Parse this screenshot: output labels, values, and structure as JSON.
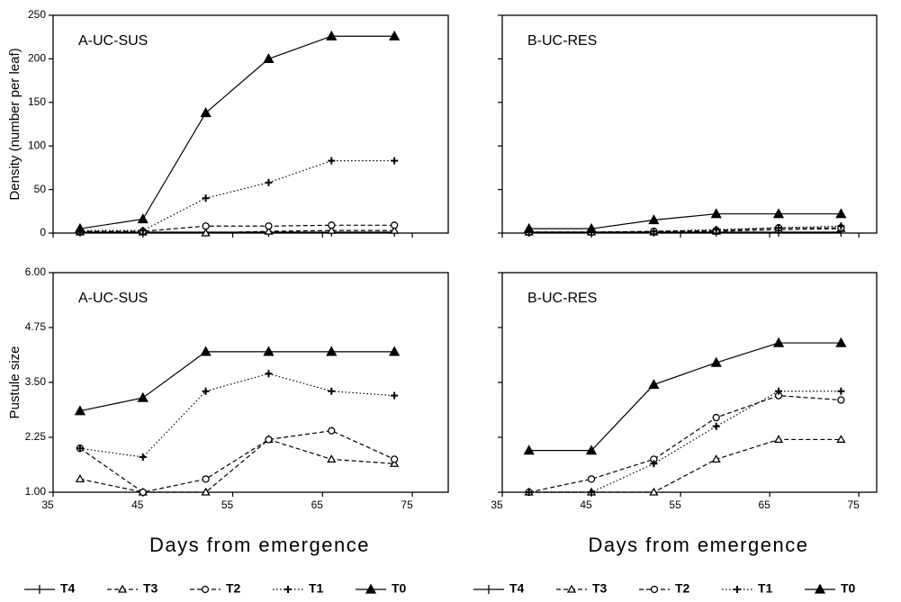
{
  "chart_data": [
    {
      "type": "line",
      "label": "A-UC-SUS",
      "y_label": "Density (number per leaf)",
      "x": [
        38,
        45,
        52,
        59,
        66,
        73
      ],
      "xlim": [
        35,
        79
      ],
      "xticks": [
        35,
        45,
        55,
        65,
        75
      ],
      "xtick_labels": false,
      "ylim": [
        0,
        250
      ],
      "yticks": [
        0,
        50,
        100,
        150,
        200,
        250
      ],
      "ytick_labels": true,
      "legend": false,
      "series": [
        {
          "name": "T4",
          "color": "#000",
          "dash": "solid",
          "marker": "bar",
          "values": [
            1,
            1,
            1,
            1,
            1,
            1
          ]
        },
        {
          "name": "T3",
          "color": "#000",
          "dash": "dashed",
          "marker": "open-triangle",
          "values": [
            1,
            1,
            0,
            2,
            3,
            3
          ]
        },
        {
          "name": "T2",
          "color": "#000",
          "dash": "dashed",
          "marker": "open-circle",
          "values": [
            2,
            2,
            8,
            8,
            9,
            9
          ]
        },
        {
          "name": "T1",
          "color": "#000",
          "dash": "dotted",
          "marker": "plus",
          "values": [
            3,
            3,
            40,
            58,
            83,
            83
          ]
        },
        {
          "name": "T0",
          "color": "#000",
          "dash": "solid",
          "marker": "filled-triangle",
          "values": [
            5,
            16,
            138,
            200,
            226,
            226
          ]
        }
      ]
    },
    {
      "type": "line",
      "label": "B-UC-RES",
      "x": [
        38,
        45,
        52,
        59,
        66,
        73
      ],
      "xlim": [
        35,
        77
      ],
      "xticks": [
        35,
        45,
        55,
        65,
        75
      ],
      "xtick_labels": false,
      "ylim": [
        0,
        250
      ],
      "yticks": [
        0,
        50,
        100,
        150,
        200,
        250
      ],
      "ytick_labels": false,
      "legend": false,
      "series": [
        {
          "name": "T4",
          "color": "#000",
          "dash": "solid",
          "marker": "bar",
          "values": [
            1,
            1,
            1,
            1,
            1,
            1
          ]
        },
        {
          "name": "T3",
          "color": "#000",
          "dash": "dashed",
          "marker": "open-triangle",
          "values": [
            1,
            1,
            1,
            2,
            4,
            5
          ]
        },
        {
          "name": "T2",
          "color": "#000",
          "dash": "dashed",
          "marker": "open-circle",
          "values": [
            1,
            1,
            2,
            3,
            6,
            6
          ]
        },
        {
          "name": "T1",
          "color": "#000",
          "dash": "dotted",
          "marker": "plus",
          "values": [
            1,
            1,
            2,
            4,
            6,
            8
          ]
        },
        {
          "name": "T0",
          "color": "#000",
          "dash": "solid",
          "marker": "filled-triangle",
          "values": [
            5,
            5,
            15,
            22,
            22,
            22
          ]
        }
      ]
    },
    {
      "type": "line",
      "label": "A-UC-SUS",
      "y_label": "Pustule size",
      "x_label": "Days from emergence",
      "x": [
        38,
        45,
        52,
        59,
        66,
        73
      ],
      "xlim": [
        35,
        79
      ],
      "xticks": [
        35,
        45,
        55,
        65,
        75
      ],
      "xtick_labels": true,
      "ylim": [
        1,
        6
      ],
      "yticks": [
        {
          "value": 1,
          "label": "1.00"
        },
        {
          "value": 2.25,
          "label": "2.25"
        },
        {
          "value": 3.5,
          "label": "3.50"
        },
        {
          "value": 4.75,
          "label": "4.75"
        },
        {
          "value": 6,
          "label": "6.00"
        }
      ],
      "ytick_labels": true,
      "legend": true,
      "series": [
        {
          "name": "T4",
          "color": "#000",
          "dash": "solid",
          "marker": "bar",
          "values": [
            null,
            null,
            null,
            null,
            null,
            null
          ]
        },
        {
          "name": "T3",
          "color": "#000",
          "dash": "dashed",
          "marker": "open-triangle",
          "values": [
            1.3,
            1.0,
            1.0,
            2.2,
            1.75,
            1.65
          ]
        },
        {
          "name": "T2",
          "color": "#000",
          "dash": "dashed",
          "marker": "open-circle",
          "values": [
            2.0,
            1.0,
            1.3,
            2.2,
            2.4,
            1.75
          ]
        },
        {
          "name": "T1",
          "color": "#000",
          "dash": "dotted",
          "marker": "plus",
          "values": [
            2.0,
            1.8,
            3.3,
            3.7,
            3.3,
            3.2
          ]
        },
        {
          "name": "T0",
          "color": "#000",
          "dash": "solid",
          "marker": "filled-triangle",
          "values": [
            2.85,
            3.15,
            4.2,
            4.2,
            4.2,
            4.2
          ]
        }
      ]
    },
    {
      "type": "line",
      "label": "B-UC-RES",
      "x_label": "Days from emergence",
      "x": [
        38,
        45,
        52,
        59,
        66,
        73
      ],
      "xlim": [
        35,
        77
      ],
      "xticks": [
        35,
        45,
        55,
        65,
        75
      ],
      "xtick_labels": true,
      "ylim": [
        1,
        6
      ],
      "yticks": [
        {
          "value": 1,
          "label": "1.00"
        },
        {
          "value": 2.25,
          "label": "2.25"
        },
        {
          "value": 3.5,
          "label": "3.50"
        },
        {
          "value": 4.75,
          "label": "4.75"
        },
        {
          "value": 6,
          "label": "6.00"
        }
      ],
      "ytick_labels": false,
      "legend": true,
      "series": [
        {
          "name": "T4",
          "color": "#000",
          "dash": "solid",
          "marker": "bar",
          "values": [
            null,
            null,
            null,
            null,
            null,
            null
          ]
        },
        {
          "name": "T3",
          "color": "#000",
          "dash": "dashed",
          "marker": "open-triangle",
          "values": [
            1.0,
            1.0,
            1.0,
            1.75,
            2.2,
            2.2
          ]
        },
        {
          "name": "T2",
          "color": "#000",
          "dash": "dashed",
          "marker": "open-circle",
          "values": [
            1.0,
            1.3,
            1.75,
            2.7,
            3.2,
            3.1
          ]
        },
        {
          "name": "T1",
          "color": "#000",
          "dash": "dotted",
          "marker": "plus",
          "values": [
            1.0,
            1.0,
            1.65,
            2.5,
            3.3,
            3.3
          ]
        },
        {
          "name": "T0",
          "color": "#000",
          "dash": "solid",
          "marker": "filled-triangle",
          "values": [
            1.95,
            1.95,
            3.45,
            3.95,
            4.4,
            4.4
          ]
        }
      ]
    }
  ]
}
